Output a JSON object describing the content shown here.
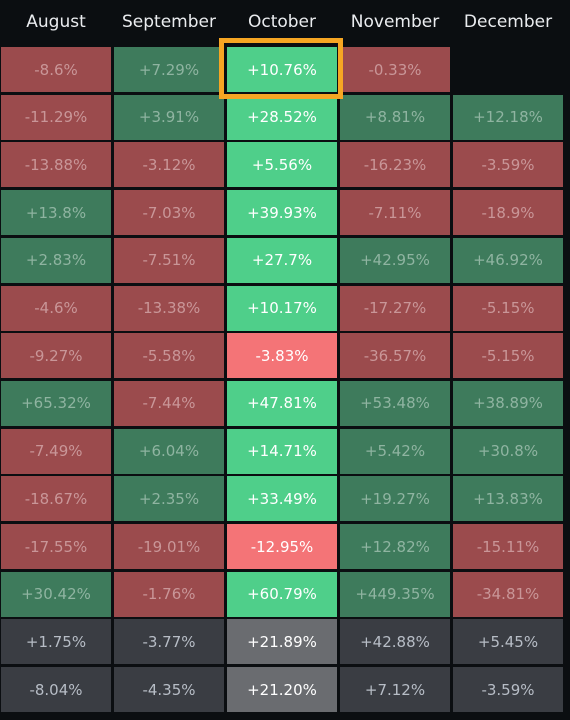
{
  "chart_data": {
    "type": "heatmap",
    "columns": [
      "August",
      "September",
      "October",
      "November",
      "December"
    ],
    "highlighted_column": "October",
    "highlighted_cell": {
      "row": 0,
      "column": "October"
    },
    "rows": [
      [
        "-8.6%",
        "+7.29%",
        "+10.76%",
        "-0.33%",
        null
      ],
      [
        "-11.29%",
        "+3.91%",
        "+28.52%",
        "+8.81%",
        "+12.18%"
      ],
      [
        "-13.88%",
        "-3.12%",
        "+5.56%",
        "-16.23%",
        "-3.59%"
      ],
      [
        "+13.8%",
        "-7.03%",
        "+39.93%",
        "-7.11%",
        "-18.9%"
      ],
      [
        "+2.83%",
        "-7.51%",
        "+27.7%",
        "+42.95%",
        "+46.92%"
      ],
      [
        "-4.6%",
        "-13.38%",
        "+10.17%",
        "-17.27%",
        "-5.15%"
      ],
      [
        "-9.27%",
        "-5.58%",
        "-3.83%",
        "-36.57%",
        "-5.15%"
      ],
      [
        "+65.32%",
        "-7.44%",
        "+47.81%",
        "+53.48%",
        "+38.89%"
      ],
      [
        "-7.49%",
        "+6.04%",
        "+14.71%",
        "+5.42%",
        "+30.8%"
      ],
      [
        "-18.67%",
        "+2.35%",
        "+33.49%",
        "+19.27%",
        "+13.83%"
      ],
      [
        "-17.55%",
        "-19.01%",
        "-12.95%",
        "+12.82%",
        "-15.11%"
      ],
      [
        "+30.42%",
        "-1.76%",
        "+60.79%",
        "+449.35%",
        "-34.81%"
      ]
    ],
    "summary_rows": [
      [
        "+1.75%",
        "-3.77%",
        "+21.89%",
        "+42.88%",
        "+5.45%"
      ],
      [
        "-8.04%",
        "-4.35%",
        "+21.20%",
        "+7.12%",
        "-3.59%"
      ]
    ],
    "colors": {
      "background": "#0b0e11",
      "positive": "#3e7b5c",
      "negative": "#9b4b4d",
      "highlight_positive": "#4fcf8a",
      "highlight_negative": "#f47477",
      "summary": "#3a3d43",
      "summary_highlight": "#6a6c70",
      "highlight_border": "#f6a623"
    }
  }
}
